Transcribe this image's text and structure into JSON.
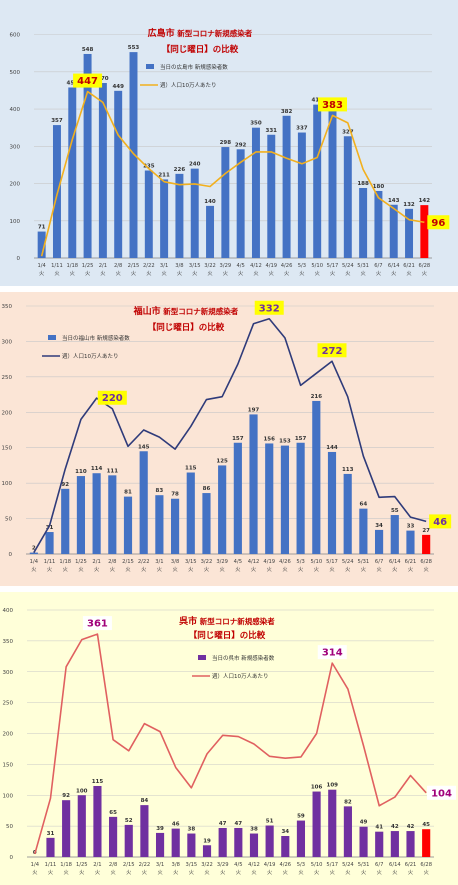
{
  "chart_data": [
    {
      "type": "bar",
      "title_city": "広島市",
      "title_rest": " 新型コロナ新規感染者",
      "title_line2": "【同じ曜日】の比較",
      "bg": "#dde8f3",
      "bar_color": "#4472c4",
      "highlight_color": "#ff0000",
      "line_color": "#f2b01e",
      "callout_bg": "#ffff00",
      "callout_fg": "#c00000",
      "ylim": [
        0,
        650
      ],
      "yticks": [
        0,
        100,
        200,
        300,
        400,
        500,
        600
      ],
      "categories": [
        "1/4",
        "1/11",
        "1/18",
        "1/25",
        "2/1",
        "2/8",
        "2/15",
        "2/22",
        "3/1",
        "3/8",
        "3/15",
        "3/22",
        "3/29",
        "4/5",
        "4/12",
        "4/19",
        "4/26",
        "5/3",
        "5/10",
        "5/17",
        "5/24",
        "5/31",
        "6/7",
        "6/14",
        "6/21",
        "6/28"
      ],
      "weekday": "火",
      "series": [
        {
          "name": "当日の広島市 新規感染者数",
          "kind": "bar",
          "values": [
            71,
            357,
            458,
            548,
            470,
            449,
            553,
            235,
            211,
            226,
            240,
            140,
            298,
            292,
            350,
            331,
            382,
            337,
            412,
            412,
            327,
            188,
            180,
            143,
            132,
            142
          ]
        },
        {
          "name": "週）人口10万人あたり",
          "kind": "line",
          "values": [
            5,
            170,
            318,
            447,
            418,
            330,
            280,
            240,
            205,
            197,
            199,
            192,
            227,
            257,
            285,
            285,
            268,
            253,
            270,
            383,
            363,
            238,
            162,
            133,
            103,
            96
          ]
        }
      ],
      "callouts": [
        {
          "index": 3,
          "text": "447"
        },
        {
          "index": 19,
          "text": "383"
        },
        {
          "index": 25,
          "text": "96"
        }
      ]
    },
    {
      "type": "bar",
      "title_city": "福山市",
      "title_rest": " 新型コロナ新規感染者",
      "title_line2": "【同じ曜日】の比較",
      "bg": "#fbe5d6",
      "bar_color": "#4472c4",
      "highlight_color": "#ff0000",
      "line_color": "#2f3b7a",
      "callout_bg": "#ffff00",
      "callout_fg": "#7030a0",
      "ylim": [
        0,
        350
      ],
      "yticks": [
        0,
        50,
        100,
        150,
        200,
        250,
        300,
        350
      ],
      "categories": [
        "1/4",
        "1/11",
        "1/18",
        "1/25",
        "2/1",
        "2/8",
        "2/15",
        "2/22",
        "3/1",
        "3/8",
        "3/15",
        "3/22",
        "3/29",
        "4/5",
        "4/12",
        "4/19",
        "4/26",
        "5/3",
        "5/10",
        "5/17",
        "5/24",
        "5/31",
        "6/7",
        "6/14",
        "6/21",
        "6/28"
      ],
      "weekday": "火",
      "series": [
        {
          "name": "当日の福山市 新規感染者数",
          "kind": "bar",
          "values": [
            2,
            31,
            92,
            110,
            114,
            111,
            81,
            145,
            83,
            78,
            115,
            86,
            125,
            157,
            197,
            156,
            153,
            157,
            216,
            144,
            113,
            64,
            34,
            55,
            33,
            27
          ]
        },
        {
          "name": "週）人口10万人あたり",
          "kind": "line",
          "values": [
            2,
            40,
            120,
            190,
            220,
            205,
            152,
            175,
            165,
            148,
            180,
            218,
            222,
            268,
            325,
            332,
            305,
            238,
            255,
            272,
            222,
            138,
            80,
            81,
            52,
            46
          ]
        }
      ],
      "callouts": [
        {
          "index": 5,
          "text": "220"
        },
        {
          "index": 15,
          "text": "332"
        },
        {
          "index": 19,
          "text": "272"
        },
        {
          "index": 25,
          "text": "46"
        }
      ]
    },
    {
      "type": "bar",
      "title_city": "呉市",
      "title_rest": " 新型コロナ新規感染者",
      "title_line2": "【同じ曜日】の比較",
      "bg": "#ffffd9",
      "bar_color": "#7030a0",
      "highlight_color": "#ff0000",
      "line_color": "#e06060",
      "callout_bg": "#ffffff",
      "callout_fg": "#a0007a",
      "ylim": [
        0,
        400
      ],
      "yticks": [
        0,
        50,
        100,
        150,
        200,
        250,
        300,
        350,
        400
      ],
      "categories": [
        "1/4",
        "1/11",
        "1/18",
        "1/25",
        "2/1",
        "2/8",
        "2/15",
        "2/22",
        "3/1",
        "3/8",
        "3/15",
        "3/22",
        "3/29",
        "4/5",
        "4/12",
        "4/19",
        "4/26",
        "5/3",
        "5/10",
        "5/17",
        "5/24",
        "5/31",
        "6/7",
        "6/14",
        "6/21",
        "6/28"
      ],
      "weekday": "火",
      "series": [
        {
          "name": "当日の呉市 新規感染者数",
          "kind": "bar",
          "values": [
            0,
            31,
            92,
            100,
            115,
            65,
            52,
            84,
            39,
            46,
            38,
            19,
            47,
            47,
            38,
            51,
            34,
            59,
            106,
            109,
            82,
            49,
            41,
            42,
            42,
            45
          ]
        },
        {
          "name": "週）人口10万人あたり",
          "kind": "line",
          "values": [
            5,
            95,
            308,
            352,
            361,
            190,
            172,
            216,
            203,
            145,
            112,
            167,
            197,
            195,
            183,
            163,
            160,
            162,
            200,
            314,
            272,
            180,
            83,
            97,
            132,
            104
          ]
        }
      ],
      "callouts": [
        {
          "index": 4,
          "text": "361"
        },
        {
          "index": 19,
          "text": "314"
        },
        {
          "index": 25,
          "text": "104"
        }
      ]
    }
  ]
}
